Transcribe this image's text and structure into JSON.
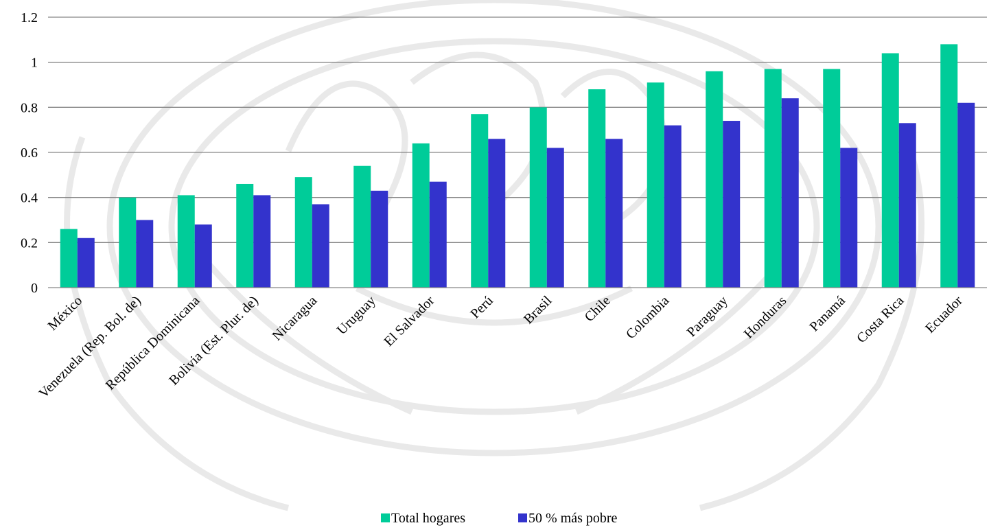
{
  "chart_data": {
    "type": "bar",
    "title": "",
    "xlabel": "",
    "ylabel": "",
    "ylim": [
      0,
      1.2
    ],
    "yticks": [
      "0",
      "0.2",
      "0.4",
      "0.6",
      "0.8",
      "1",
      "1.2"
    ],
    "grid": "horizontal",
    "legend_position": "bottom",
    "categories": [
      "México",
      "Venezuela (Rep. Bol. de)",
      "República Dominicana",
      "Bolivia (Est. Plur. de)",
      "Nicaragua",
      "Uruguay",
      "El Salvador",
      "Perú",
      "Brasil",
      "Chile",
      "Colombia",
      "Paraguay",
      "Honduras",
      "Panamá",
      "Costa Rica",
      "Ecuador"
    ],
    "series": [
      {
        "name": "Total hogares",
        "color": "#00CC99",
        "values": [
          0.26,
          0.4,
          0.41,
          0.46,
          0.49,
          0.54,
          0.64,
          0.77,
          0.8,
          0.88,
          0.91,
          0.96,
          0.97,
          0.97,
          1.04,
          1.08
        ]
      },
      {
        "name": "50 % más pobre",
        "color": "#3333CC",
        "values": [
          0.22,
          0.3,
          0.28,
          0.41,
          0.37,
          0.43,
          0.47,
          0.66,
          0.62,
          0.66,
          0.72,
          0.74,
          0.84,
          0.62,
          0.73,
          0.82
        ]
      }
    ]
  }
}
